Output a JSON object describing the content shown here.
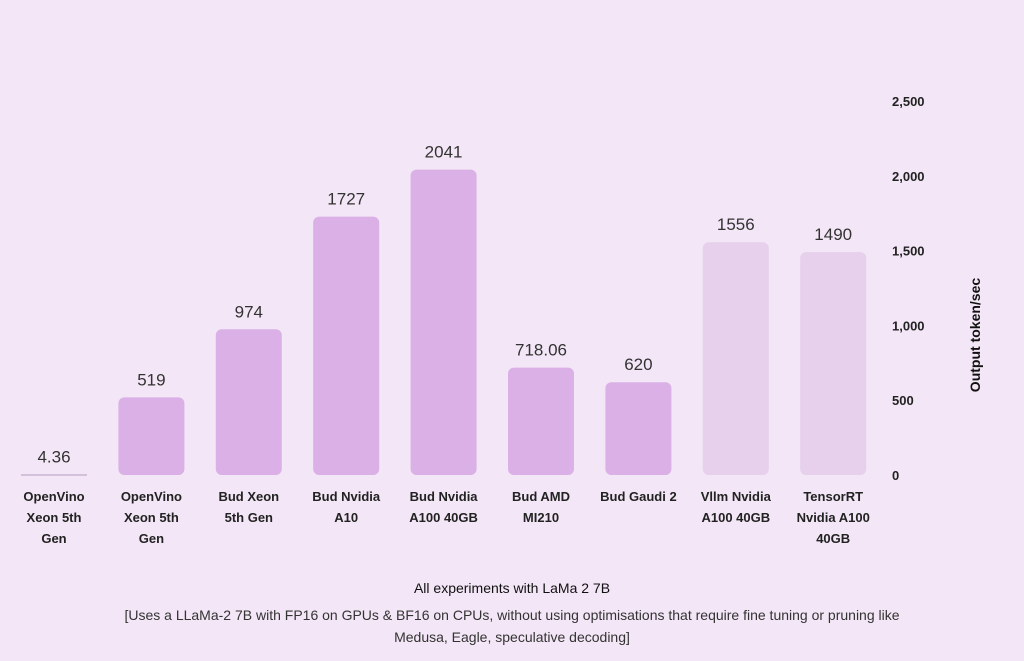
{
  "chart_data": {
    "type": "bar",
    "categories": [
      [
        "OpenVino",
        "Xeon 5th",
        "Gen"
      ],
      [
        "OpenVino",
        "Xeon 5th",
        "Gen"
      ],
      [
        "Bud Xeon",
        "5th Gen"
      ],
      [
        "Bud Nvidia",
        "A10"
      ],
      [
        "Bud Nvidia",
        "A100 40GB"
      ],
      [
        "Bud AMD",
        "MI210"
      ],
      [
        "Bud Gaudi 2"
      ],
      [
        "Vllm Nvidia",
        "A100 40GB"
      ],
      [
        "TensorRT",
        "Nvidia A100",
        "40GB"
      ]
    ],
    "values": [
      4.36,
      519,
      974,
      1727,
      2041,
      718.06,
      620,
      1556,
      1490
    ],
    "value_labels": [
      "4.36",
      "519",
      "974",
      "1727",
      "2041",
      "718.06",
      "620",
      "1556",
      "1490"
    ],
    "highlight": [
      true,
      true,
      true,
      true,
      true,
      true,
      true,
      false,
      false
    ],
    "ylabel": "Output token/sec",
    "ylim": [
      0,
      2500
    ],
    "yticks": [
      0,
      500,
      1000,
      1500,
      2000,
      2500
    ],
    "ytick_labels": [
      "0",
      "500",
      "1,000",
      "1,500",
      "2,000",
      "2,500"
    ],
    "y_axis_position": "right",
    "grid": false,
    "colors": {
      "primary": "#dab0e6",
      "muted": "#e6d0ec",
      "baseline": "#c9b6d2"
    },
    "title": "All experiments with LaMa 2 7B",
    "subtitle": "[Uses a LLaMa-2 7B with FP16 on GPUs & BF16 on CPUs, without using optimisations that require fine tuning or pruning like Medusa, Eagle, speculative decoding]"
  }
}
